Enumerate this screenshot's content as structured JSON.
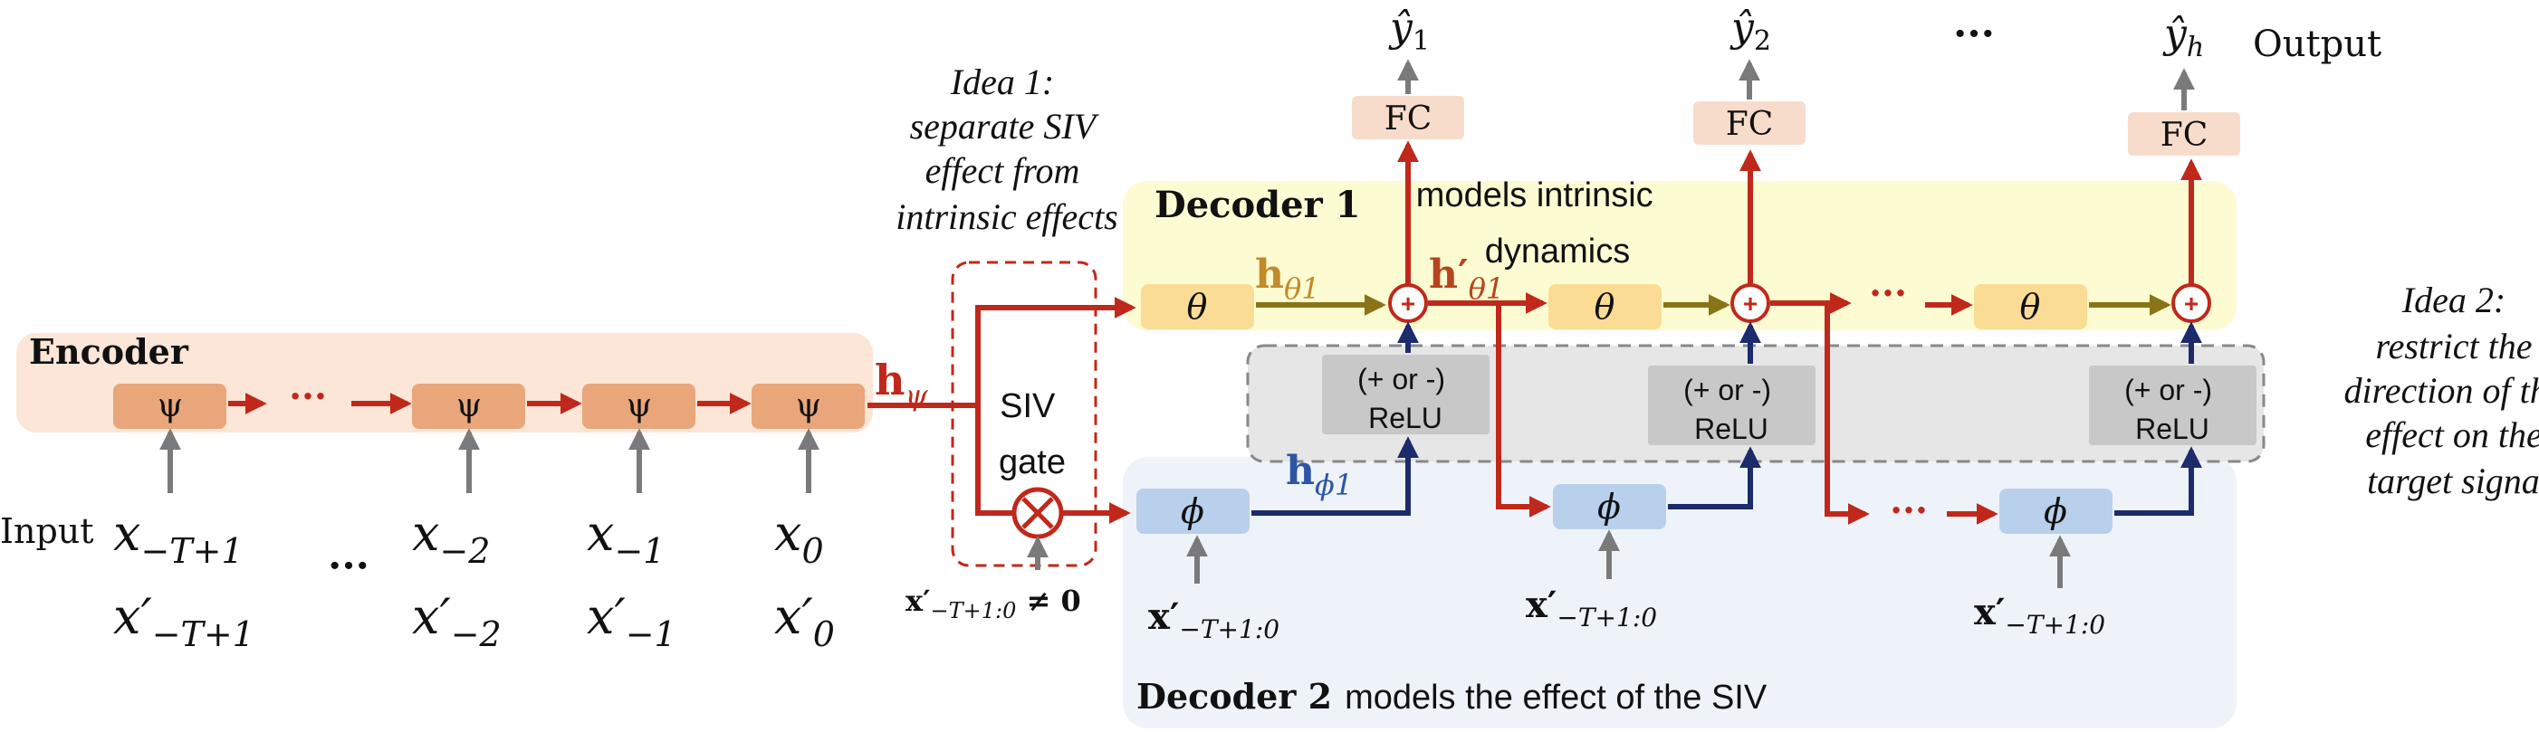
{
  "idea1": {
    "lines": [
      "Idea 1:",
      "separate SIV",
      "effect from",
      "intrinsic effects"
    ]
  },
  "idea2": {
    "lines": [
      "Idea 2:",
      "restrict the",
      "direction of the",
      "effect on the",
      "target signal"
    ]
  },
  "encoder": {
    "label": "Encoder",
    "cell_symbol": "ψ",
    "hidden_state": "h",
    "hidden_sub": "ψ",
    "ellipsis": "···"
  },
  "inputs": {
    "label": "Input",
    "x_top": [
      {
        "base": "x",
        "sub": "−T+1"
      },
      {
        "base": "x",
        "sub": "−2"
      },
      {
        "base": "x",
        "sub": "−1"
      },
      {
        "base": "x",
        "sub": "0"
      }
    ],
    "x_bottom": [
      {
        "base": "x′",
        "sub": "−T+1"
      },
      {
        "base": "x′",
        "sub": "−2"
      },
      {
        "base": "x′",
        "sub": "−1"
      },
      {
        "base": "x′",
        "sub": "0"
      }
    ],
    "ellipsis": "···"
  },
  "siv_gate": {
    "label_top": "SIV",
    "label_bottom": "gate",
    "condition_base": "x′",
    "condition_sub": "−T+1:0",
    "condition_rest": " ≠ 0"
  },
  "decoder1": {
    "label": "Decoder 1",
    "desc_line1": "models intrinsic",
    "desc_line2": "dynamics",
    "cell_symbol": "θ",
    "h_theta": {
      "base": "h",
      "sub": "θ1"
    },
    "h_theta_prime": {
      "base": "h′",
      "sub": "θ1"
    },
    "ellipsis": "···"
  },
  "decoder2": {
    "label": "Decoder 2",
    "desc": "models the effect of the SIV",
    "cell_symbol": "ϕ",
    "h_phi": {
      "base": "h",
      "sub": "ϕ1"
    },
    "input_base": "x′",
    "input_sub": "−T+1:0",
    "ellipsis": "···"
  },
  "relu": {
    "line1": "(+ or -)",
    "line2": "ReLU"
  },
  "sum_symbol": "+",
  "fc": {
    "label": "FC"
  },
  "outputs": {
    "label": "Output",
    "items": [
      {
        "base": "ŷ",
        "sub": "1"
      },
      {
        "base": "ŷ",
        "sub": "2"
      },
      {
        "base": "ŷ",
        "sub": "h"
      }
    ],
    "ellipsis": "···"
  },
  "colors": {
    "encoder_bg": "#fbe6d8",
    "encoder_cell": "#e9a67a",
    "decoder1_bg": "#fdfbd2",
    "theta_cell": "#fbdc95",
    "decoder2_bg": "#eef3fa",
    "phi_cell": "#b8d0ec",
    "relu_bg": "#e6e6e6",
    "relu_cell": "#c8c8c8",
    "fc_cell": "#f8dccb",
    "red": "#c0281b",
    "navy": "#1b2b6b",
    "olive": "#8a7418",
    "gray": "#7a7a7a",
    "hpsi": "#c0281b",
    "htheta": "#c28a2a",
    "hthetaprime": "#b5451f",
    "hphi": "#2d55a5"
  }
}
